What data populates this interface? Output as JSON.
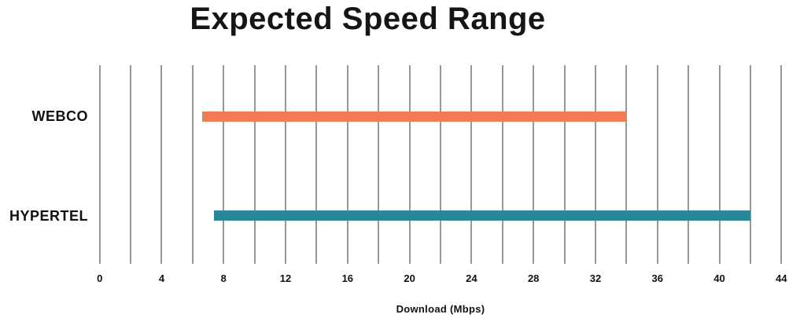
{
  "chart_data": {
    "type": "bar",
    "subtype": "horizontal-range-bar",
    "title": "Expected Speed Range",
    "xlabel": "Download (Mbps)",
    "categories": [
      "WEBCO",
      "HYPERTEL"
    ],
    "series": [
      {
        "name": "WEBCO",
        "range_mbps": [
          6.6,
          34
        ],
        "color": "#F07B55"
      },
      {
        "name": "HYPERTEL",
        "range_mbps": [
          7.4,
          42
        ],
        "color": "#2A8799"
      }
    ],
    "xlim": [
      0,
      44
    ],
    "xticks": [
      0,
      4,
      8,
      12,
      16,
      20,
      24,
      28,
      32,
      36,
      40,
      44
    ],
    "grid": true,
    "grid_step": 2,
    "gridline_color": "#9B9894",
    "legend": false,
    "text_color": "#111111",
    "background_color": "#FFFFFF"
  }
}
